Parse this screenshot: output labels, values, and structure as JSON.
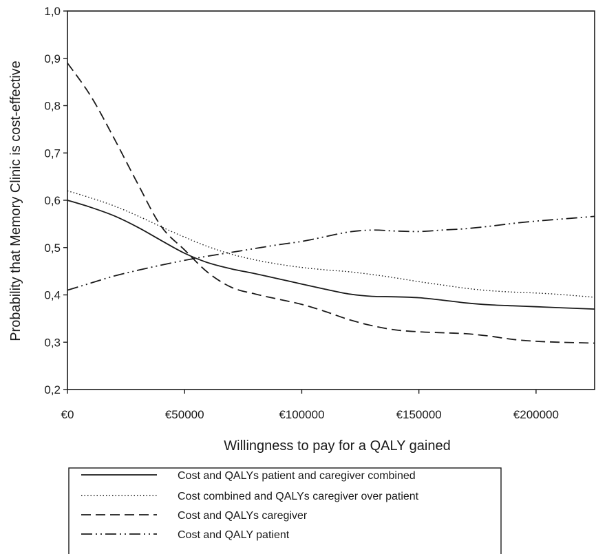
{
  "chart_data": {
    "type": "line",
    "xlabel": "Willingness to pay for a QALY gained",
    "ylabel": "Probability that Memory Clinic is cost-effective",
    "xlim": [
      0,
      225000
    ],
    "ylim": [
      0.2,
      1.0
    ],
    "x_ticks": [
      0,
      50000,
      100000,
      150000,
      200000
    ],
    "x_tick_labels": [
      "€0",
      "€50000",
      "€100000",
      "€150000",
      "€200000"
    ],
    "y_ticks": [
      0.2,
      0.3,
      0.4,
      0.5,
      0.6,
      0.7,
      0.8,
      0.9,
      1.0
    ],
    "y_tick_labels": [
      "0,2",
      "0,3",
      "0,4",
      "0,5",
      "0,6",
      "0,7",
      "0,8",
      "0,9",
      "1,0"
    ],
    "grid": false,
    "legend_position": "bottom",
    "series": [
      {
        "name": "Cost and QALYs patient and caregiver combined",
        "style": "solid",
        "x": [
          0,
          10000,
          20000,
          30000,
          40000,
          50000,
          60000,
          70000,
          80000,
          90000,
          100000,
          110000,
          120000,
          130000,
          140000,
          150000,
          160000,
          170000,
          180000,
          190000,
          200000,
          210000,
          225000
        ],
        "y": [
          0.6,
          0.585,
          0.567,
          0.543,
          0.515,
          0.488,
          0.468,
          0.455,
          0.445,
          0.434,
          0.423,
          0.412,
          0.402,
          0.397,
          0.396,
          0.394,
          0.389,
          0.383,
          0.379,
          0.377,
          0.375,
          0.373,
          0.37
        ]
      },
      {
        "name": "Cost combined and QALYs caregiver over patient",
        "style": "dotted",
        "x": [
          0,
          10000,
          20000,
          30000,
          40000,
          50000,
          60000,
          70000,
          80000,
          90000,
          100000,
          110000,
          120000,
          130000,
          140000,
          150000,
          160000,
          170000,
          180000,
          190000,
          200000,
          210000,
          225000
        ],
        "y": [
          0.62,
          0.605,
          0.588,
          0.567,
          0.544,
          0.522,
          0.502,
          0.486,
          0.474,
          0.465,
          0.458,
          0.453,
          0.449,
          0.443,
          0.436,
          0.428,
          0.421,
          0.414,
          0.409,
          0.406,
          0.404,
          0.401,
          0.395
        ]
      },
      {
        "name": "Cost and QALYs caregiver",
        "style": "dashed",
        "x": [
          0,
          10000,
          20000,
          30000,
          40000,
          50000,
          60000,
          70000,
          80000,
          90000,
          100000,
          110000,
          120000,
          130000,
          140000,
          150000,
          160000,
          170000,
          180000,
          190000,
          200000,
          210000,
          225000
        ],
        "y": [
          0.89,
          0.82,
          0.73,
          0.635,
          0.545,
          0.495,
          0.447,
          0.416,
          0.402,
          0.391,
          0.38,
          0.365,
          0.348,
          0.335,
          0.326,
          0.322,
          0.32,
          0.318,
          0.313,
          0.306,
          0.302,
          0.3,
          0.298
        ]
      },
      {
        "name": "Cost and QALY patient",
        "style": "dashdotdot",
        "x": [
          0,
          10000,
          20000,
          30000,
          40000,
          50000,
          60000,
          70000,
          80000,
          90000,
          100000,
          110000,
          120000,
          130000,
          140000,
          150000,
          160000,
          170000,
          180000,
          190000,
          200000,
          210000,
          225000
        ],
        "y": [
          0.41,
          0.425,
          0.44,
          0.452,
          0.463,
          0.473,
          0.482,
          0.49,
          0.498,
          0.506,
          0.513,
          0.523,
          0.533,
          0.537,
          0.535,
          0.534,
          0.537,
          0.54,
          0.545,
          0.551,
          0.556,
          0.56,
          0.566
        ]
      }
    ]
  }
}
